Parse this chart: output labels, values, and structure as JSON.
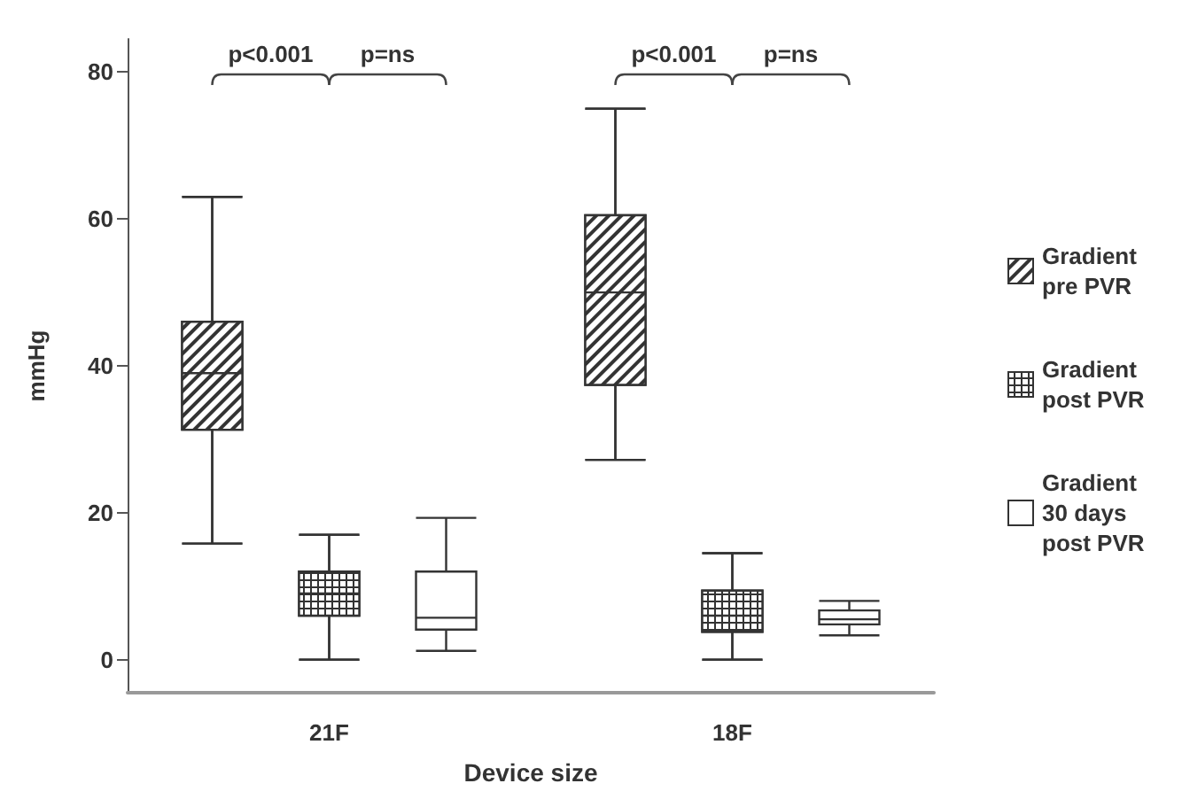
{
  "chart_data": {
    "type": "box",
    "xlabel": "Device size",
    "ylabel": "mmHg",
    "categories": [
      "21F",
      "18F"
    ],
    "ylim": [
      -4.5,
      84.5
    ],
    "yticks": [
      0,
      20,
      40,
      60,
      80
    ],
    "grid": false,
    "legend": "right",
    "annotations": [
      "p<0.001",
      "p=ns",
      "p<0.001",
      "p=ns"
    ],
    "series": [
      {
        "name": "Gradient pre PVR",
        "color": "#333333",
        "boxes": [
          {
            "low": 15.8,
            "q1": 31.3,
            "median": 39,
            "q3": 46,
            "high": 63
          },
          {
            "low": 27.2,
            "q1": 37.4,
            "median": 50,
            "q3": 60.5,
            "high": 75
          }
        ]
      },
      {
        "name": "Gradient post PVR",
        "color": "#333333",
        "boxes": [
          {
            "low": 0,
            "q1": 6,
            "median": 9,
            "q3": 12,
            "high": 17
          },
          {
            "low": 0,
            "q1": 3.8,
            "median": 6,
            "q3": 9.4,
            "high": 14.5
          }
        ]
      },
      {
        "name": "Gradient 30 days post PVR",
        "color": "#333333",
        "boxes": [
          {
            "low": 1.2,
            "q1": 4.1,
            "median": 5.7,
            "q3": 12,
            "high": 19.3
          },
          {
            "low": 3.3,
            "q1": 4.8,
            "median": 5.5,
            "q3": 6.7,
            "high": 8
          }
        ]
      }
    ]
  }
}
